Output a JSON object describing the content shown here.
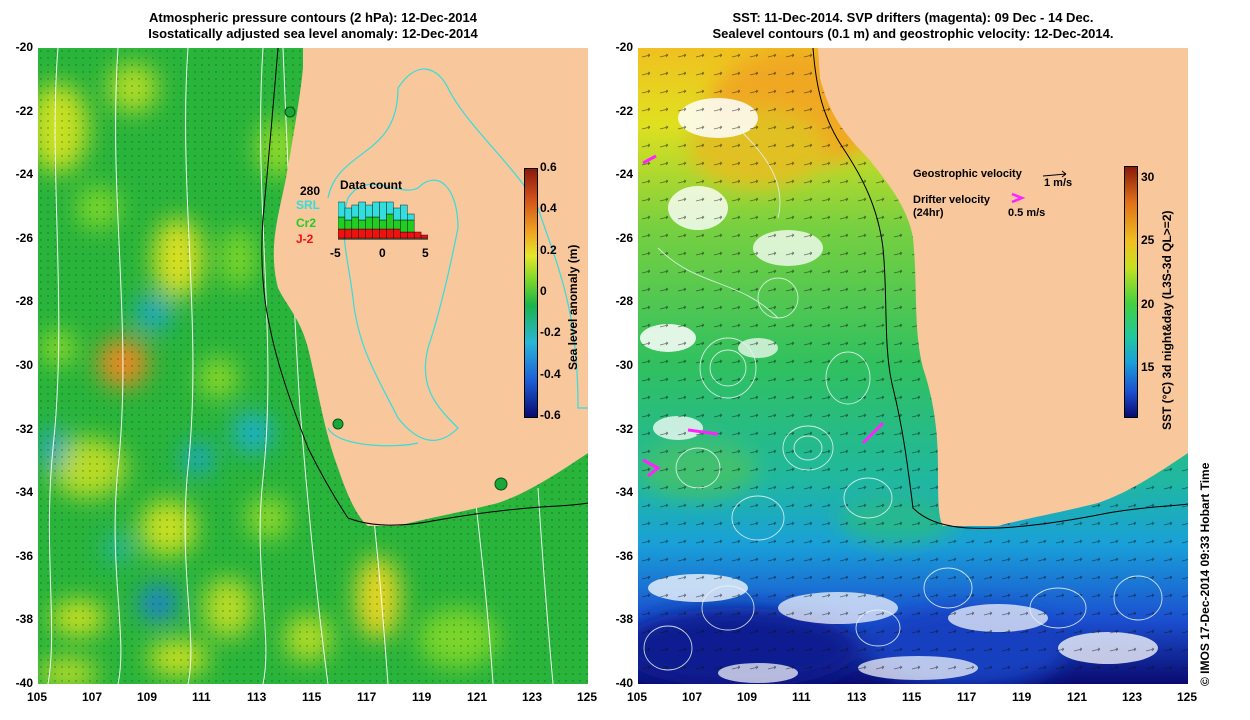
{
  "left_panel": {
    "title_line1": "Atmospheric pressure contours (2 hPa): 12-Dec-2014",
    "title_line2": "Isostatically adjusted sea level anomaly: 12-Dec-2014",
    "colorbar_title": "Sea level anomaly (m)",
    "colorbar_ticks": [
      "0.6",
      "0.4",
      "0.2",
      "0",
      "-0.2",
      "-0.4",
      "-0.6"
    ],
    "inset": {
      "title": "Data count",
      "total": "280",
      "legend": [
        {
          "label": "SRL",
          "color": "#33dddd"
        },
        {
          "label": "Cr2",
          "color": "#22cc22"
        },
        {
          "label": "J-2",
          "color": "#ee1111"
        }
      ],
      "x_ticks": [
        "-5",
        "0",
        "5"
      ],
      "bars_red": [
        3,
        3,
        3,
        3,
        3,
        3,
        3,
        3,
        3,
        2,
        2,
        2,
        1
      ],
      "bars_green": [
        4,
        3,
        4,
        3,
        4,
        4,
        3,
        5,
        3,
        4,
        4,
        0,
        0
      ],
      "bars_cyan": [
        5,
        4,
        4,
        6,
        4,
        5,
        6,
        4,
        4,
        5,
        2,
        0,
        0
      ]
    }
  },
  "right_panel": {
    "title_line1": "SST: 11-Dec-2014. SVP drifters (magenta): 09 Dec - 14 Dec.",
    "title_line2": "Sealevel contours (0.1 m) and geostrophic velocity: 12-Dec-2014.",
    "colorbar_title": "SST (°C) 3d night&day (L3S-3d QL>=2)",
    "colorbar_ticks": [
      "30",
      "25",
      "20",
      "15"
    ],
    "legend_geo": "Geostrophic velocity",
    "legend_geo_scale": "1 m/s",
    "legend_drifter": "Drifter velocity",
    "legend_drifter_sub": "(24hr)",
    "legend_drifter_scale": "0.5 m/s"
  },
  "axes": {
    "x_ticks": [
      "105",
      "107",
      "109",
      "111",
      "113",
      "115",
      "117",
      "119",
      "121",
      "123",
      "125"
    ],
    "y_ticks": [
      "-20",
      "-22",
      "-24",
      "-26",
      "-28",
      "-30",
      "-32",
      "-34",
      "-36",
      "-38",
      "-40"
    ]
  },
  "credit": "© IMOS 17-Dec-2014 09:33 Hobart Time",
  "colors": {
    "land": "#f8c79c",
    "sla_ramp": [
      "#0a0a70",
      "#1d5fd8",
      "#29b6d8",
      "#1ab44a",
      "#7ad62a",
      "#e6e62a",
      "#f0a020",
      "#d0501a",
      "#8a1a0a"
    ],
    "sst_ramp": [
      "#0a0a70",
      "#1b4fd0",
      "#1aa0d8",
      "#20c8a0",
      "#40d040",
      "#c8e020",
      "#f0c020",
      "#e07018",
      "#8a1a0a"
    ]
  }
}
